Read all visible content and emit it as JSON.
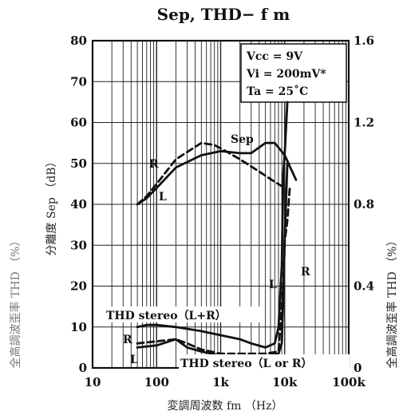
{
  "chart_data": {
    "type": "line",
    "title": "Sep, THD− f m",
    "xlabel": "変調周波数  fm （Hz）",
    "ylabel_left": "分離度  Sep  （dB）",
    "ylabel_right": "全高調波歪率  THD  （%）",
    "ylabel_left_outer": "全高調波歪率  THD  （%）",
    "x_scale": "log",
    "xlim": [
      10,
      100000
    ],
    "ylim_left": [
      0,
      80
    ],
    "ylim_right": [
      0,
      1.6
    ],
    "grid": true,
    "x_ticks": [
      "10",
      "100",
      "1k",
      "10k",
      "100k"
    ],
    "y_ticks_left": [
      "0",
      "10",
      "20",
      "30",
      "40",
      "50",
      "60",
      "70",
      "80"
    ],
    "y_ticks_right": [
      "0",
      "0.4",
      "0.8",
      "1.2",
      "1.6"
    ],
    "conditions": [
      "Vcc = 9V",
      "Vi = 200mV*",
      "Ta = 25˚C"
    ],
    "annotations": [
      "Sep",
      "R",
      "L",
      "THD  stereo（L+R）",
      "THD  stereo（L or R）"
    ],
    "series": [
      {
        "name": "Sep R",
        "axis": "left",
        "style": "dashed",
        "x": [
          50,
          70,
          100,
          200,
          500,
          800,
          1200,
          2000,
          4000,
          7000,
          10000
        ],
        "y": [
          40,
          42,
          45,
          51,
          55,
          54.5,
          53,
          51,
          48,
          45.5,
          44
        ]
      },
      {
        "name": "Sep L",
        "axis": "left",
        "style": "solid",
        "x": [
          50,
          70,
          100,
          200,
          500,
          1000,
          2000,
          3000,
          5000,
          7000,
          10000,
          15000
        ],
        "y": [
          40,
          41.5,
          44,
          49,
          52,
          53,
          52.5,
          52.5,
          55,
          55,
          52,
          46
        ]
      },
      {
        "name": "THD stereo (L+R)",
        "axis": "right",
        "style": "solid",
        "x": [
          50,
          70,
          100,
          200,
          500,
          1000,
          2000,
          3000,
          5000,
          7000,
          8000,
          9000,
          9500,
          10000,
          11000
        ],
        "y": [
          0.2,
          0.21,
          0.21,
          0.2,
          0.18,
          0.16,
          0.14,
          0.12,
          0.1,
          0.12,
          0.2,
          0.5,
          0.95,
          1.05,
          1.3
        ]
      },
      {
        "name": "THD R",
        "axis": "right",
        "style": "dashed",
        "x": [
          50,
          100,
          200,
          300,
          500,
          1000,
          2000,
          5000,
          8000,
          9500,
          10000,
          11000,
          12000
        ],
        "y": [
          0.12,
          0.13,
          0.14,
          0.12,
          0.09,
          0.07,
          0.07,
          0.07,
          0.08,
          0.4,
          0.62,
          0.72,
          0.88
        ]
      },
      {
        "name": "THD L",
        "axis": "right",
        "style": "solid",
        "x": [
          50,
          100,
          200,
          300,
          500,
          1000,
          2000,
          5000,
          8000,
          9000,
          9500,
          10000,
          11000
        ],
        "y": [
          0.1,
          0.11,
          0.14,
          0.1,
          0.08,
          0.06,
          0.06,
          0.06,
          0.07,
          0.12,
          0.35,
          0.64,
          1.0
        ]
      }
    ]
  }
}
